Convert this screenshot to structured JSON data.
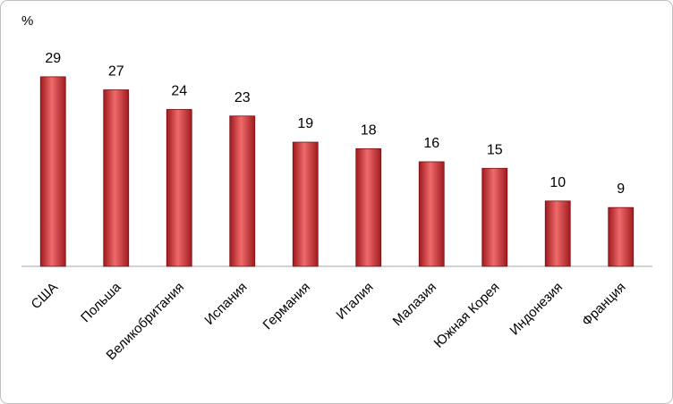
{
  "chart_data": {
    "type": "bar",
    "y_label": "%",
    "categories": [
      "США",
      "Польша",
      "Великобритания",
      "Испания",
      "Германия",
      "Италия",
      "Малазия",
      "Южная Корея",
      "Индонезия",
      "Франция"
    ],
    "values": [
      29,
      27,
      24,
      23,
      19,
      18,
      16,
      15,
      10,
      9
    ],
    "color": "#c0272d",
    "ylim": [
      0,
      35
    ]
  }
}
